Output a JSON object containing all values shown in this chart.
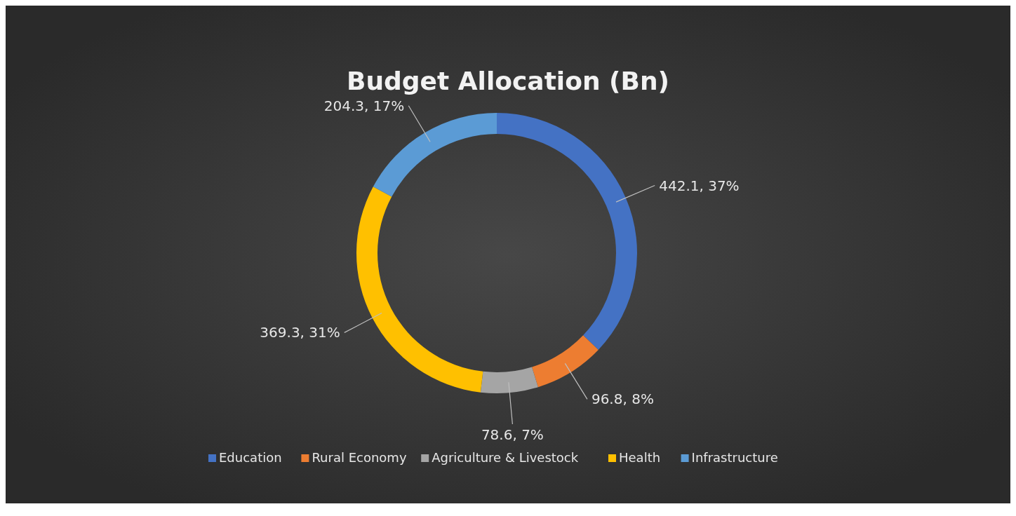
{
  "chart_data": {
    "type": "donut",
    "title": "Budget Allocation (Bn)",
    "categories": [
      "Education",
      "Rural Economy",
      "Agriculture & Livestock",
      "Health",
      "Infrastructure"
    ],
    "values": [
      442.1,
      96.8,
      78.6,
      369.3,
      204.3
    ],
    "colors": [
      "#4472c4",
      "#ed7d31",
      "#a5a5a5",
      "#ffc000",
      "#5b9bd5"
    ],
    "value_labels": [
      "442.1, 37%",
      "96.8, 8%",
      "78.6, 7%",
      "369.3, 31%",
      "204.3, 17%"
    ],
    "legend": "bottom"
  }
}
